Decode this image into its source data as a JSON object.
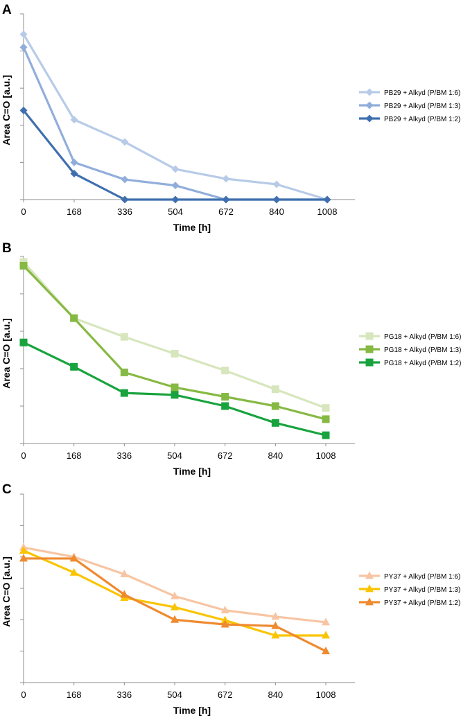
{
  "figure": {
    "panels": [
      "A",
      "B",
      "C"
    ]
  },
  "chart_data": [
    {
      "type": "line",
      "panel": "A",
      "title": "",
      "xlabel": "Time [h]",
      "ylabel": "Area C=O [a.u.]",
      "x": [
        0,
        168,
        336,
        504,
        672,
        840,
        1008
      ],
      "xtick_labels": [
        "0",
        "168",
        "336",
        "504",
        "672",
        "840",
        "1008"
      ],
      "ylim": [
        0,
        5
      ],
      "y_ticks": 5,
      "y_tick_labels_shown": false,
      "marker": "diamond",
      "legend_position": "right",
      "series": [
        {
          "name": "PB29 + Alkyd (P/BM 1:6)",
          "color": "#b7cbe8",
          "values": [
            4.45,
            2.15,
            1.55,
            0.82,
            0.56,
            0.41,
            0.0
          ]
        },
        {
          "name": "PB29 + Alkyd (P/BM 1:3)",
          "color": "#91aedb",
          "values": [
            4.1,
            1.0,
            0.54,
            0.38,
            0.0,
            0.0,
            0.0
          ]
        },
        {
          "name": "PB29 + Alkyd (P/BM 1:2)",
          "color": "#3f6fae",
          "values": [
            2.4,
            0.7,
            0.0,
            0.0,
            0.0,
            0.0,
            0.0
          ]
        }
      ]
    },
    {
      "type": "line",
      "panel": "B",
      "title": "",
      "xlabel": "Time [h]",
      "ylabel": "Area C=O [a.u.]",
      "x": [
        0,
        168,
        336,
        504,
        672,
        840,
        1008
      ],
      "xtick_labels": [
        "0",
        "168",
        "336",
        "504",
        "672",
        "840",
        "1008"
      ],
      "ylim": [
        0,
        5
      ],
      "y_ticks": 5,
      "y_tick_labels_shown": false,
      "marker": "square",
      "legend_position": "right",
      "series": [
        {
          "name": "PG18 + Alkyd (P/BM 1:6)",
          "color": "#d7e6bd",
          "values": [
            4.85,
            3.35,
            2.85,
            2.4,
            1.95,
            1.45,
            0.95
          ]
        },
        {
          "name": "PG18 + Alkyd (P/BM 1:3)",
          "color": "#86b943",
          "values": [
            4.75,
            3.35,
            1.9,
            1.5,
            1.25,
            1.0,
            0.65
          ]
        },
        {
          "name": "PG18 + Alkyd (P/BM 1:2)",
          "color": "#18a33e",
          "values": [
            2.7,
            2.05,
            1.35,
            1.3,
            1.0,
            0.55,
            0.22
          ]
        }
      ]
    },
    {
      "type": "line",
      "panel": "C",
      "title": "",
      "xlabel": "Time [h]",
      "ylabel": "Area C=O [a.u.]",
      "x": [
        0,
        168,
        336,
        504,
        672,
        840,
        1008
      ],
      "xtick_labels": [
        "0",
        "168",
        "336",
        "504",
        "672",
        "840",
        "1008"
      ],
      "ylim": [
        0,
        6
      ],
      "y_ticks": 6,
      "y_tick_labels_shown": false,
      "marker": "triangle",
      "legend_position": "right",
      "series": [
        {
          "name": "PY37 + Alkyd (P/BM 1:6)",
          "color": "#f7c5a3",
          "values": [
            4.3,
            4.0,
            3.45,
            2.75,
            2.3,
            2.1,
            1.92
          ]
        },
        {
          "name": "PY37 + Alkyd (P/BM 1:3)",
          "color": "#f9c400",
          "values": [
            4.2,
            3.5,
            2.7,
            2.4,
            1.98,
            1.5,
            1.5
          ]
        },
        {
          "name": "PY37 + Alkyd (P/BM 1:2)",
          "color": "#ef8a30",
          "values": [
            3.95,
            3.95,
            2.8,
            2.0,
            1.85,
            1.8,
            1.0
          ]
        }
      ]
    }
  ]
}
